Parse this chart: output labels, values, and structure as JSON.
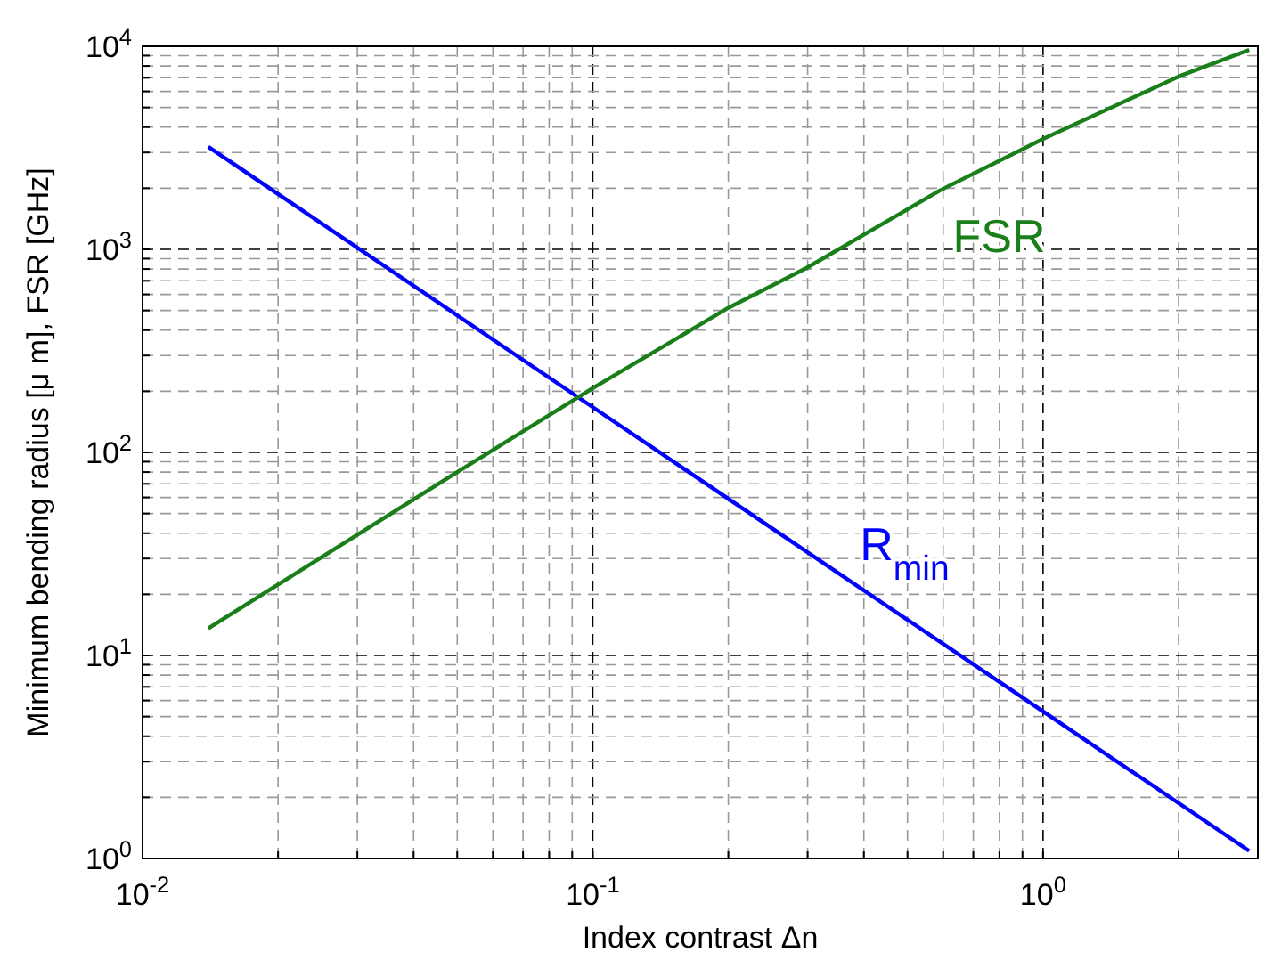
{
  "chart_data": {
    "type": "line",
    "xlabel": "Index contrast Δn",
    "ylabel": "Minimum bending radius [μ m], FSR [GHz]",
    "log": "xy",
    "grid": true,
    "line_style": "solid",
    "marker": "none",
    "xlim": [
      0.01,
      3
    ],
    "ylim": [
      1,
      10000
    ],
    "xticks": [
      {
        "value": 0.01,
        "label": "10$^{-2}$"
      },
      {
        "value": 0.02,
        "label": null
      },
      {
        "value": 0.03,
        "label": null
      },
      {
        "value": 0.04,
        "label": null
      },
      {
        "value": 0.05,
        "label": null
      },
      {
        "value": 0.06,
        "label": null
      },
      {
        "value": 0.07,
        "label": null
      },
      {
        "value": 0.08,
        "label": null
      },
      {
        "value": 0.09,
        "label": null
      },
      {
        "value": 0.1,
        "label": "10$^{-1}$"
      },
      {
        "value": 0.2,
        "label": null
      },
      {
        "value": 0.3,
        "label": null
      },
      {
        "value": 0.4,
        "label": null
      },
      {
        "value": 0.5,
        "label": null
      },
      {
        "value": 0.6,
        "label": null
      },
      {
        "value": 0.7,
        "label": null
      },
      {
        "value": 0.8,
        "label": null
      },
      {
        "value": 0.9,
        "label": null
      },
      {
        "value": 1,
        "label": "10$^{0}$"
      },
      {
        "value": 2,
        "label": null
      }
    ],
    "yticks": [
      {
        "value": 1,
        "label": "10$^{0}$"
      },
      {
        "value": 2,
        "label": null
      },
      {
        "value": 3,
        "label": null
      },
      {
        "value": 4,
        "label": null
      },
      {
        "value": 5,
        "label": null
      },
      {
        "value": 6,
        "label": null
      },
      {
        "value": 7,
        "label": null
      },
      {
        "value": 8,
        "label": null
      },
      {
        "value": 9,
        "label": null
      },
      {
        "value": 10,
        "label": "10$^{1}$"
      },
      {
        "value": 20,
        "label": null
      },
      {
        "value": 30,
        "label": null
      },
      {
        "value": 40,
        "label": null
      },
      {
        "value": 50,
        "label": null
      },
      {
        "value": 60,
        "label": null
      },
      {
        "value": 70,
        "label": null
      },
      {
        "value": 80,
        "label": null
      },
      {
        "value": 90,
        "label": null
      },
      {
        "value": 100,
        "label": "10$^{2}$"
      },
      {
        "value": 200,
        "label": null
      },
      {
        "value": 300,
        "label": null
      },
      {
        "value": 400,
        "label": null
      },
      {
        "value": 500,
        "label": null
      },
      {
        "value": 600,
        "label": null
      },
      {
        "value": 700,
        "label": null
      },
      {
        "value": 800,
        "label": null
      },
      {
        "value": 900,
        "label": null
      },
      {
        "value": 1000,
        "label": "10$^{3}$"
      },
      {
        "value": 2000,
        "label": null
      },
      {
        "value": 3000,
        "label": null
      },
      {
        "value": 4000,
        "label": null
      },
      {
        "value": 5000,
        "label": null
      },
      {
        "value": 6000,
        "label": null
      },
      {
        "value": 7000,
        "label": null
      },
      {
        "value": 8000,
        "label": null
      },
      {
        "value": 9000,
        "label": null
      },
      {
        "value": 10000,
        "label": "10$^{4}$"
      }
    ],
    "series": [
      {
        "name": "R$_{min}$",
        "color": "#0000ff",
        "x": [
          0.014,
          0.1,
          1,
          2.87
        ],
        "values": [
          3200,
          167,
          5.3,
          1.09
        ]
      },
      {
        "name": "FSR",
        "color": "#1a7f1a",
        "x": [
          0.014,
          0.05,
          0.1,
          0.2,
          0.3,
          0.59,
          1,
          2,
          2.87
        ],
        "values": [
          13.6,
          80,
          207,
          515,
          815,
          1950,
          3500,
          7100,
          9600
        ]
      }
    ]
  }
}
